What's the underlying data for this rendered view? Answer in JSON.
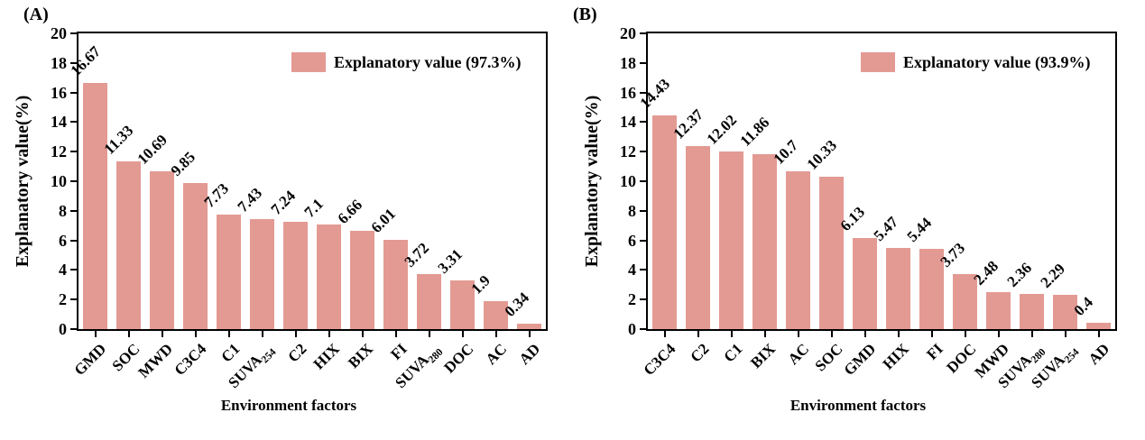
{
  "figure": {
    "background": "#ffffff",
    "bar_color": "#E39A93",
    "axis_color": "#000000",
    "text_color": "#000000"
  },
  "chart_data": [
    {
      "type": "bar",
      "panel_label": "(A)",
      "categories": [
        "GMD",
        "SOC",
        "MWD",
        "C3C4",
        "C1",
        "SUVA254",
        "C2",
        "HIX",
        "BIX",
        "FI",
        "SUVA280",
        "DOC",
        "AC",
        "AD"
      ],
      "values": [
        16.67,
        11.33,
        10.69,
        9.85,
        7.73,
        7.43,
        7.24,
        7.1,
        6.66,
        6.01,
        3.72,
        3.31,
        1.9,
        0.34
      ],
      "xlabel": "Environment factors",
      "ylabel": "Explanatory value(%)",
      "ylim": [
        0,
        20
      ],
      "yticks": [
        0,
        2,
        4,
        6,
        8,
        10,
        12,
        14,
        16,
        18,
        20
      ],
      "legend": "Explanatory value (97.3%)",
      "legend_position": "top-right-inside",
      "grid": false,
      "value_label_rotation_deg": 45,
      "xtick_rotation_deg": 45
    },
    {
      "type": "bar",
      "panel_label": "(B)",
      "categories": [
        "C3C4",
        "C2",
        "C1",
        "BIX",
        "AC",
        "SOC",
        "GMD",
        "HIX",
        "FI",
        "DOC",
        "MWD",
        "SUVA280",
        "SUVA254",
        "AD"
      ],
      "values": [
        14.43,
        12.37,
        12.02,
        11.86,
        10.7,
        10.33,
        6.13,
        5.47,
        5.44,
        3.73,
        2.48,
        2.36,
        2.29,
        0.4
      ],
      "xlabel": "Environment factors",
      "ylabel": "Explanatory value(%)",
      "ylim": [
        0,
        20
      ],
      "yticks": [
        0,
        2,
        4,
        6,
        8,
        10,
        12,
        14,
        16,
        18,
        20
      ],
      "legend": "Explanatory value (93.9%)",
      "legend_position": "top-right-inside",
      "grid": false,
      "value_label_rotation_deg": 45,
      "xtick_rotation_deg": 45
    }
  ]
}
